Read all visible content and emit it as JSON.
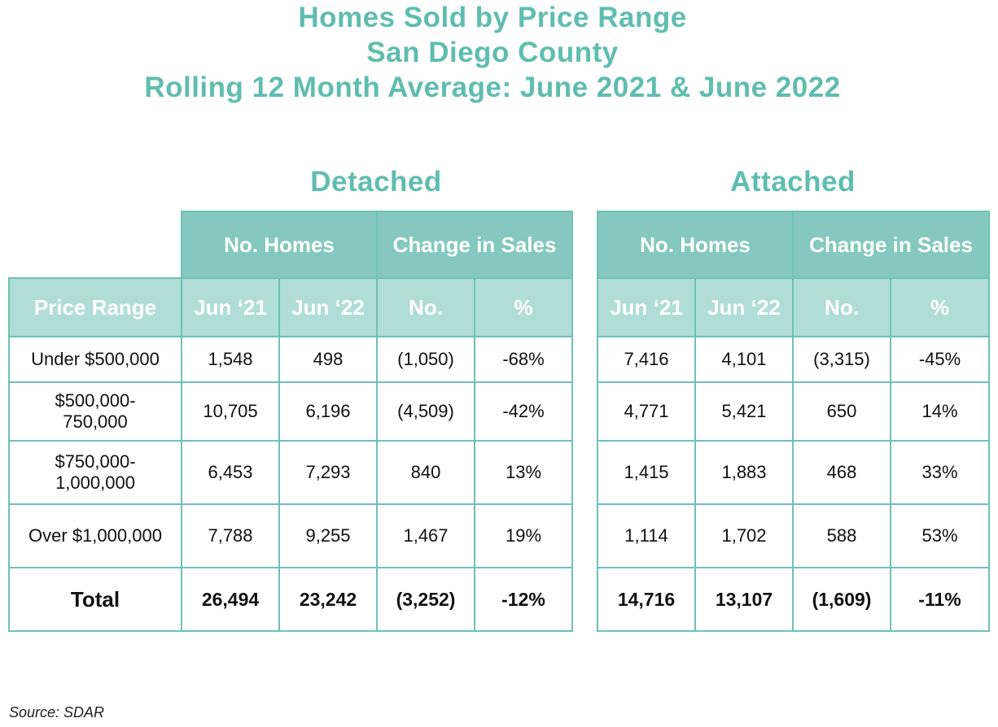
{
  "title": {
    "line1": "Homes Sold by Price Range",
    "line2": "San Diego County",
    "line3": "Rolling 12 Month Average: June 2021 & June 2022"
  },
  "headers": {
    "no_homes": "No. Homes",
    "change_in_sales": "Change in Sales",
    "price_range": "Price Range",
    "jun21": "Jun ‘21",
    "jun22": "Jun ‘22",
    "no": "No.",
    "pct": "%"
  },
  "detached": {
    "title": "Detached",
    "rows": [
      {
        "range": "Under $500,000",
        "jun21": "1,548",
        "jun22": "498",
        "change": "(1,050)",
        "pct": "-68%"
      },
      {
        "range": "$500,000-\n750,000",
        "jun21": "10,705",
        "jun22": "6,196",
        "change": "(4,509)",
        "pct": "-42%"
      },
      {
        "range": "$750,000-\n1,000,000",
        "jun21": "6,453",
        "jun22": "7,293",
        "change": "840",
        "pct": "13%"
      },
      {
        "range": "Over $1,000,000",
        "jun21": "7,788",
        "jun22": "9,255",
        "change": "1,467",
        "pct": "19%"
      }
    ],
    "total": {
      "label": "Total",
      "jun21": "26,494",
      "jun22": "23,242",
      "change": "(3,252)",
      "pct": "-12%"
    }
  },
  "attached": {
    "title": "Attached",
    "rows": [
      {
        "jun21": "7,416",
        "jun22": "4,101",
        "change": "(3,315)",
        "pct": "-45%"
      },
      {
        "jun21": "4,771",
        "jun22": "5,421",
        "change": "650",
        "pct": "14%"
      },
      {
        "jun21": "1,415",
        "jun22": "1,883",
        "change": "468",
        "pct": "33%"
      },
      {
        "jun21": "1,114",
        "jun22": "1,702",
        "change": "588",
        "pct": "53%"
      }
    ],
    "total": {
      "jun21": "14,716",
      "jun22": "13,107",
      "change": "(1,609)",
      "pct": "-11%"
    }
  },
  "source": "Source: SDAR",
  "chart_data": {
    "type": "table",
    "title": "Homes Sold by Price Range — San Diego County — Rolling 12 Month Average: June 2021 & June 2022",
    "columns": [
      "Price Range",
      "Detached Jun ‘21",
      "Detached Jun ‘22",
      "Detached Change No.",
      "Detached Change %",
      "Attached Jun ‘21",
      "Attached Jun ‘22",
      "Attached Change No.",
      "Attached Change %"
    ],
    "rows": [
      [
        "Under $500,000",
        1548,
        498,
        -1050,
        -68,
        7416,
        4101,
        -3315,
        -45
      ],
      [
        "$500,000-750,000",
        10705,
        6196,
        -4509,
        -42,
        4771,
        5421,
        650,
        14
      ],
      [
        "$750,000-1,000,000",
        6453,
        7293,
        840,
        13,
        1415,
        1883,
        468,
        33
      ],
      [
        "Over $1,000,000",
        7788,
        9255,
        1467,
        19,
        1114,
        1702,
        588,
        53
      ],
      [
        "Total",
        26494,
        23242,
        -3252,
        -12,
        14716,
        13107,
        -1609,
        -11
      ]
    ]
  }
}
